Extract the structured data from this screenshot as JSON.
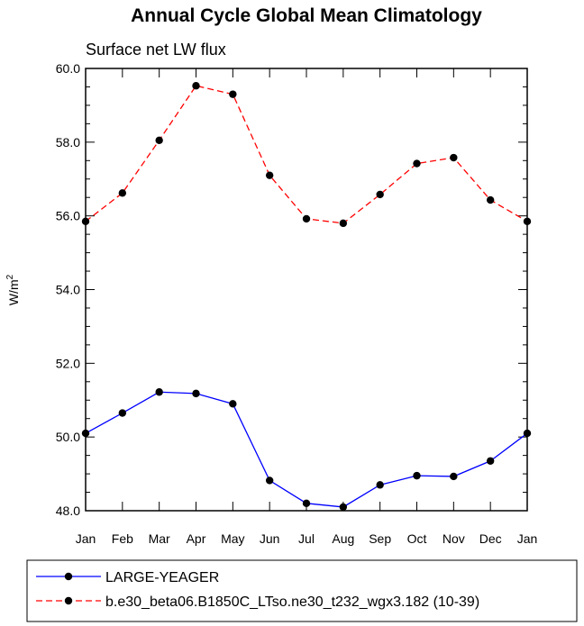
{
  "chart_data": {
    "type": "line",
    "title": "Annual Cycle Global Mean Climatology",
    "subtitle": "Surface net LW flux",
    "ylabel": "W/m",
    "ylabel_sup": "2",
    "ylim": [
      48.0,
      60.0
    ],
    "yticks": [
      "48.0",
      "50.0",
      "52.0",
      "54.0",
      "56.0",
      "58.0",
      "60.0"
    ],
    "categories": [
      "Jan",
      "Feb",
      "Mar",
      "Apr",
      "May",
      "Jun",
      "Jul",
      "Aug",
      "Sep",
      "Oct",
      "Nov",
      "Dec",
      "Jan"
    ],
    "grid": false,
    "legend_position": "bottom",
    "series": [
      {
        "name": "LARGE-YEAGER",
        "color": "#0000ff",
        "dash": "solid",
        "values": [
          50.1,
          50.65,
          51.22,
          51.18,
          50.9,
          48.82,
          48.2,
          48.1,
          48.7,
          48.95,
          48.93,
          49.35,
          50.1
        ]
      },
      {
        "name": "b.e30_beta06.B1850C_LTso.ne30_t232_wgx3.182 (10-39)",
        "color": "#ff0000",
        "dash": "dashed",
        "values": [
          55.85,
          56.62,
          58.05,
          59.53,
          59.3,
          57.1,
          55.92,
          55.8,
          56.58,
          57.42,
          57.58,
          56.43,
          55.85
        ]
      }
    ]
  }
}
